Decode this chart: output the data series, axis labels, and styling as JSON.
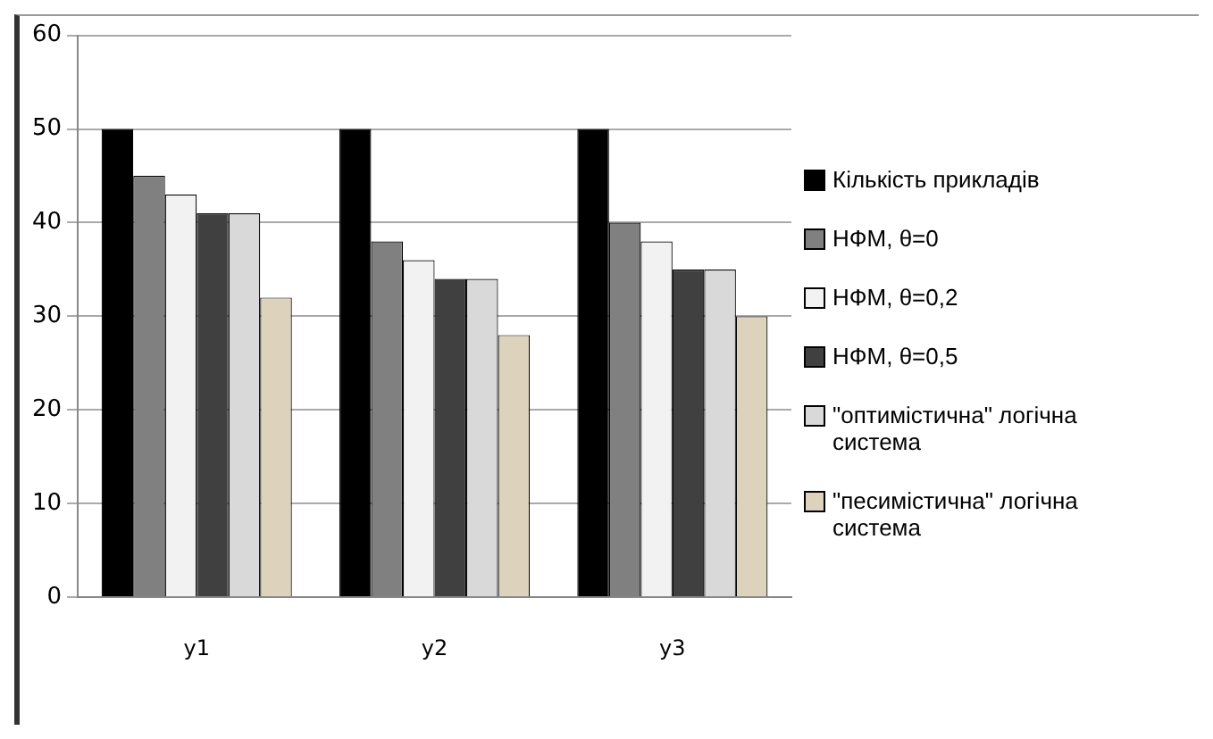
{
  "chart_data": {
    "type": "bar",
    "categories": [
      "y1",
      "y2",
      "y3"
    ],
    "series": [
      {
        "name": "Кількість прикладів",
        "color": "#000000",
        "values": [
          50,
          50,
          50
        ]
      },
      {
        "name": "НФМ, θ=0",
        "color": "#808080",
        "values": [
          45,
          38,
          40
        ]
      },
      {
        "name": "НФМ, θ=0,2",
        "color": "#f2f2f2",
        "values": [
          43,
          36,
          38
        ]
      },
      {
        "name": "НФМ, θ=0,5",
        "color": "#404040",
        "values": [
          41,
          34,
          35
        ]
      },
      {
        "name": "\"оптимістична\" логічна система",
        "color": "#d9d9d9",
        "values": [
          41,
          34,
          35
        ]
      },
      {
        "name": "\"песимістична\" логічна система",
        "color": "#ddd3bd",
        "values": [
          32,
          28,
          30
        ]
      }
    ],
    "ylim": [
      0,
      60
    ],
    "yticks": [
      0,
      10,
      20,
      30,
      40,
      50,
      60
    ],
    "grid": "y",
    "legend": "right"
  }
}
